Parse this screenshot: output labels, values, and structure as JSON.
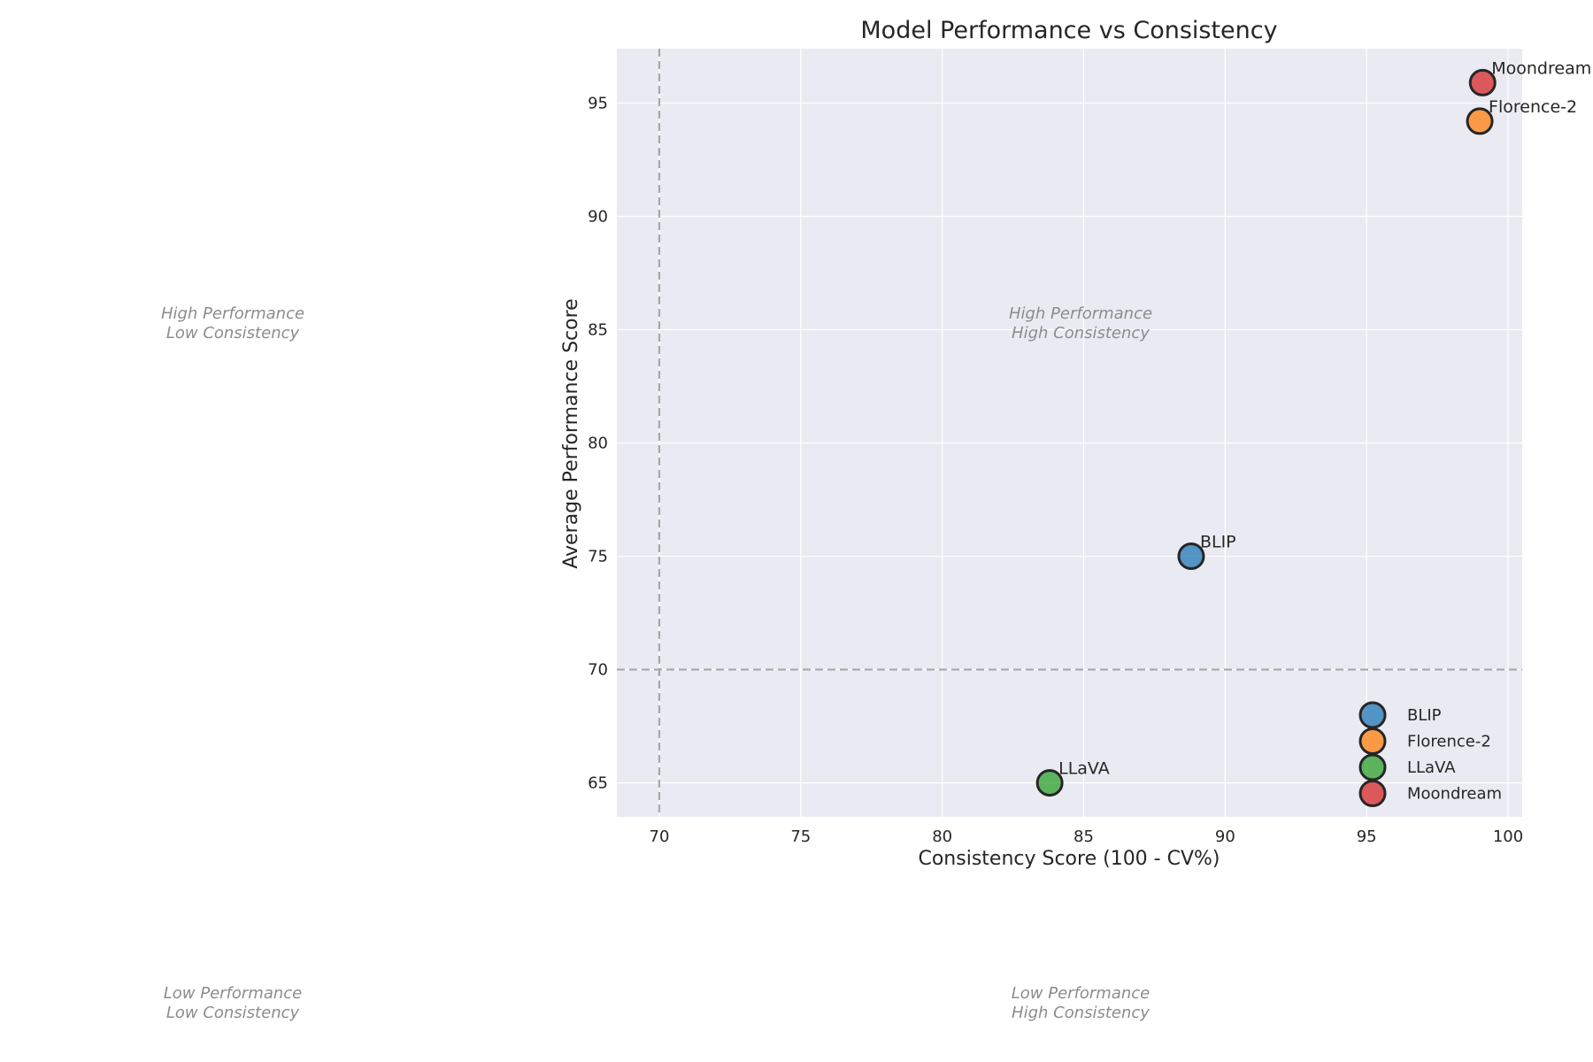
{
  "chart_data": {
    "type": "scatter",
    "title": "Model Performance vs Consistency",
    "xlabel": "Consistency Score (100 - CV%)",
    "ylabel": "Average Performance Score",
    "xlim": [
      68.5,
      100.5
    ],
    "ylim": [
      63.5,
      97.4
    ],
    "xticks": [
      70,
      75,
      80,
      85,
      90,
      95,
      100
    ],
    "yticks": [
      65,
      70,
      75,
      80,
      85,
      90,
      95
    ],
    "grid": true,
    "reference_lines": {
      "x": 70,
      "y": 70,
      "style": "dashed"
    },
    "legend_position": "lower-right",
    "series": [
      {
        "name": "BLIP",
        "color": "#1f77b4",
        "points": [
          {
            "x": 88.8,
            "y": 75.0,
            "label": "BLIP"
          }
        ]
      },
      {
        "name": "Florence-2",
        "color": "#ff7f0e",
        "points": [
          {
            "x": 99.0,
            "y": 94.2,
            "label": "Florence-2"
          }
        ]
      },
      {
        "name": "LLaVA",
        "color": "#2ca02c",
        "points": [
          {
            "x": 83.8,
            "y": 65.0,
            "label": "LLaVA"
          }
        ]
      },
      {
        "name": "Moondream",
        "color": "#d62728",
        "points": [
          {
            "x": 99.1,
            "y": 95.9,
            "label": "Moondream"
          }
        ]
      }
    ],
    "quadrant_labels": [
      {
        "lines": [
          "High Performance",
          "Low Consistency"
        ]
      },
      {
        "lines": [
          "High Performance",
          "High Consistency"
        ]
      },
      {
        "lines": [
          "Low Performance",
          "Low Consistency"
        ]
      },
      {
        "lines": [
          "Low Performance",
          "High Consistency"
        ]
      }
    ]
  }
}
